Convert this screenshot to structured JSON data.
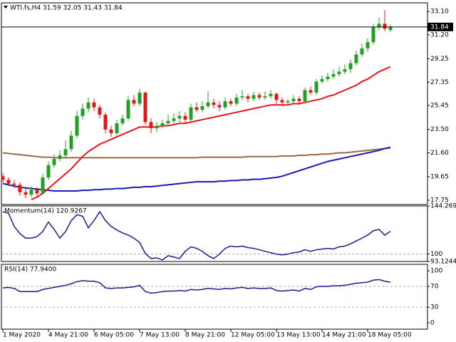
{
  "chart_data": [
    {
      "type": "candlestick",
      "title": "WTI.fs,H4  31.59 32.05 31.43 31.84",
      "ylim": [
        17.4,
        33.8
      ],
      "yticks": [
        {
          "value": 33.1,
          "label": "33.10"
        },
        {
          "value": 31.2,
          "label": "31.20"
        },
        29.25,
        27.35,
        25.45,
        {
          "value": 23.5,
          "label": "23.50"
        },
        {
          "value": 21.6,
          "label": "21.60"
        },
        19.65,
        17.75
      ],
      "last_price": 31.84,
      "up_color": "#22a022",
      "down_color": "#e01818",
      "open": [
        19.7,
        19.4,
        19.1,
        19.0,
        18.4,
        18.2,
        18.6,
        18.3,
        19.6,
        20.6,
        21.1,
        21.4,
        21.9,
        23.0,
        24.6,
        25.2,
        25.7,
        25.3,
        24.7,
        23.5,
        23.2,
        24.0,
        24.4,
        25.9,
        25.6,
        26.5,
        24.1,
        23.6,
        23.8,
        24.0,
        24.2,
        24.4,
        24.6,
        24.3,
        25.3,
        25.1,
        25.4,
        25.7,
        25.5,
        25.3,
        25.8,
        25.6,
        26.1,
        26.2,
        26.0,
        26.3,
        26.1,
        26.2,
        26.4,
        25.9,
        25.7,
        25.8,
        26.0,
        25.8,
        26.7,
        26.5,
        27.4,
        27.6,
        27.8,
        28.0,
        28.2,
        28.4,
        28.9,
        29.6,
        30.1,
        30.6,
        31.8,
        32.1,
        31.59
      ],
      "high": [
        19.95,
        19.6,
        19.4,
        19.2,
        18.7,
        18.9,
        18.8,
        19.9,
        20.9,
        21.5,
        21.8,
        22.6,
        23.4,
        25.0,
        25.6,
        26.1,
        26.0,
        25.5,
        24.9,
        23.8,
        24.3,
        24.7,
        26.2,
        26.3,
        26.8,
        26.6,
        24.4,
        24.1,
        24.3,
        24.7,
        24.8,
        25.0,
        24.9,
        25.6,
        25.7,
        25.8,
        26.6,
        26.0,
        25.8,
        26.1,
        26.0,
        26.4,
        26.7,
        26.4,
        26.6,
        26.5,
        26.6,
        26.7,
        26.5,
        26.1,
        26.0,
        26.3,
        26.2,
        26.9,
        27.0,
        27.6,
        27.9,
        28.1,
        28.4,
        28.6,
        28.8,
        29.2,
        29.9,
        30.5,
        30.9,
        32.1,
        32.6,
        33.2,
        32.05
      ],
      "low": [
        19.2,
        18.9,
        18.7,
        18.1,
        17.9,
        18.0,
        18.0,
        18.2,
        19.4,
        20.4,
        20.9,
        21.2,
        21.7,
        22.8,
        24.3,
        24.9,
        25.0,
        24.4,
        23.2,
        22.9,
        23.0,
        23.8,
        24.2,
        25.4,
        25.4,
        23.9,
        23.2,
        23.3,
        23.6,
        23.8,
        24.0,
        24.1,
        24.0,
        24.1,
        24.9,
        24.9,
        25.2,
        25.2,
        25.0,
        25.1,
        25.4,
        25.4,
        25.9,
        25.7,
        25.8,
        25.9,
        25.9,
        26.0,
        25.6,
        25.4,
        25.5,
        25.6,
        25.5,
        25.6,
        26.3,
        26.3,
        27.2,
        27.4,
        27.6,
        27.8,
        28.0,
        28.1,
        28.7,
        29.4,
        29.8,
        30.4,
        31.6,
        31.5,
        31.43
      ],
      "close": [
        19.4,
        19.1,
        19.0,
        18.4,
        18.2,
        18.6,
        18.3,
        19.6,
        20.6,
        21.1,
        21.4,
        21.9,
        23.0,
        24.6,
        25.2,
        25.7,
        25.3,
        24.7,
        23.5,
        23.2,
        24.0,
        24.4,
        25.9,
        25.6,
        26.5,
        24.1,
        23.6,
        23.8,
        24.0,
        24.2,
        24.4,
        24.6,
        24.3,
        25.3,
        25.1,
        25.4,
        25.7,
        25.5,
        25.3,
        25.8,
        25.6,
        26.1,
        26.2,
        26.0,
        26.3,
        26.1,
        26.2,
        26.4,
        25.9,
        25.7,
        25.8,
        26.0,
        25.8,
        26.7,
        26.5,
        27.4,
        27.6,
        27.8,
        28.0,
        28.2,
        28.4,
        28.9,
        29.6,
        30.1,
        30.6,
        31.8,
        32.1,
        31.7,
        31.84
      ],
      "overlays": [
        {
          "color": "#9c6a42",
          "values": [
            21.6,
            21.55,
            21.5,
            21.45,
            21.4,
            21.35,
            21.3,
            21.25,
            21.25,
            21.2,
            21.2,
            21.2,
            21.2,
            21.2,
            21.2,
            21.2,
            21.2,
            21.2,
            21.2,
            21.2,
            21.2,
            21.2,
            21.2,
            21.2,
            21.2,
            21.2,
            21.2,
            21.2,
            21.2,
            21.2,
            21.2,
            21.2,
            21.2,
            21.2,
            21.2,
            21.25,
            21.25,
            21.25,
            21.25,
            21.25,
            21.25,
            21.25,
            21.25,
            21.3,
            21.3,
            21.3,
            21.3,
            21.3,
            21.3,
            21.35,
            21.35,
            21.35,
            21.4,
            21.4,
            21.45,
            21.45,
            21.5,
            21.5,
            21.55,
            21.6,
            21.6,
            21.65,
            21.7,
            21.75,
            21.8,
            21.85,
            21.9,
            21.95,
            22.0
          ]
        },
        {
          "color": "#1a1ab4",
          "values": [
            19.1,
            19.0,
            18.9,
            18.8,
            18.75,
            18.7,
            18.65,
            18.6,
            18.55,
            18.5,
            18.5,
            18.5,
            18.5,
            18.5,
            18.55,
            18.55,
            18.6,
            18.6,
            18.65,
            18.65,
            18.7,
            18.7,
            18.75,
            18.8,
            18.8,
            18.85,
            18.85,
            18.9,
            18.95,
            19.0,
            19.05,
            19.1,
            19.15,
            19.2,
            19.25,
            19.25,
            19.25,
            19.25,
            19.3,
            19.3,
            19.35,
            19.35,
            19.4,
            19.4,
            19.45,
            19.45,
            19.5,
            19.55,
            19.6,
            19.7,
            19.85,
            20.0,
            20.15,
            20.3,
            20.45,
            20.6,
            20.75,
            20.9,
            21.0,
            21.1,
            21.2,
            21.3,
            21.4,
            21.5,
            21.6,
            21.7,
            21.8,
            21.95,
            22.05
          ]
        },
        {
          "color": "#e8141c",
          "values": [
            null,
            null,
            null,
            null,
            null,
            17.8,
            18.0,
            18.3,
            18.7,
            19.1,
            19.5,
            19.9,
            20.3,
            20.8,
            21.3,
            21.7,
            22.0,
            22.3,
            22.5,
            22.7,
            22.9,
            23.1,
            23.3,
            23.5,
            23.7,
            23.7,
            23.7,
            23.7,
            23.8,
            23.8,
            23.9,
            24.0,
            24.0,
            24.1,
            24.2,
            24.3,
            24.4,
            24.5,
            24.6,
            24.7,
            24.8,
            24.9,
            25.0,
            25.1,
            25.2,
            25.3,
            25.4,
            25.5,
            25.5,
            25.5,
            25.5,
            25.6,
            25.6,
            25.7,
            25.8,
            25.9,
            26.0,
            26.2,
            26.3,
            26.5,
            26.7,
            26.9,
            27.1,
            27.4,
            27.6,
            27.9,
            28.2,
            28.4,
            28.6
          ]
        }
      ]
    },
    {
      "type": "line",
      "title": "Momentum(14) 120.9267",
      "color": "#1c1c8c",
      "ylim": [
        93.1244,
        144.2699
      ],
      "yticks": [
        144.2699,
        100,
        93.1244
      ],
      "levels": [
        100
      ],
      "values": [
        138.9,
        137.5,
        125.4,
        118.7,
        114.6,
        114.6,
        116.0,
        120.7,
        129.5,
        122.7,
        114.6,
        120.7,
        130.8,
        136.2,
        134.8,
        124.1,
        130.8,
        138.9,
        130.8,
        125.4,
        122.1,
        119.4,
        117.4,
        114.6,
        110.6,
        100.5,
        95.8,
        96.5,
        94.5,
        98.5,
        97.2,
        95.8,
        102.5,
        106.6,
        105.2,
        102.5,
        98.5,
        95.8,
        99.9,
        105.2,
        107.3,
        106.6,
        107.3,
        105.9,
        105.2,
        103.9,
        102.5,
        101.2,
        99.9,
        99.2,
        99.9,
        101.2,
        101.9,
        103.9,
        102.5,
        103.9,
        104.6,
        105.2,
        104.6,
        106.6,
        107.3,
        109.3,
        112.0,
        114.6,
        117.4,
        121.4,
        122.7,
        117.4,
        120.9267
      ]
    },
    {
      "type": "line",
      "title": "RSI(14) 77.9400",
      "color": "#1c1c8c",
      "ylim": [
        -12.3,
        112.3
      ],
      "yticks": [
        100,
        70,
        30,
        0
      ],
      "levels": [
        70,
        30
      ],
      "values": [
        67,
        68,
        66,
        60,
        60,
        60,
        60,
        64,
        66,
        68,
        70,
        72,
        75,
        79,
        81,
        80,
        80,
        77,
        67,
        66,
        67,
        67,
        68,
        69,
        72,
        60,
        57,
        58,
        60,
        61,
        61,
        62,
        61,
        64,
        63,
        64,
        66,
        65,
        64,
        66,
        65,
        67,
        68,
        66,
        67,
        66,
        66,
        67,
        62,
        61,
        62,
        63,
        61,
        66,
        64,
        69,
        70,
        70,
        71,
        71,
        72,
        74,
        76,
        77,
        78,
        82,
        83,
        80,
        77.94
      ],
      "xticks": [
        {
          "value": 0,
          "label": "1 May 2020"
        },
        {
          "value": 8,
          "label": "4 May 21:00"
        },
        {
          "value": 16,
          "label": "6 May 05:00"
        },
        {
          "value": 24,
          "label": "7 May 13:00"
        },
        {
          "value": 32,
          "label": "8 May 21:00"
        },
        {
          "value": 40,
          "label": "12 May 05:00"
        },
        {
          "value": 48,
          "label": "13 May 13:00"
        },
        {
          "value": 56,
          "label": "14 May 21:00"
        },
        {
          "value": 64,
          "label": "18 May 05:00"
        }
      ]
    }
  ]
}
